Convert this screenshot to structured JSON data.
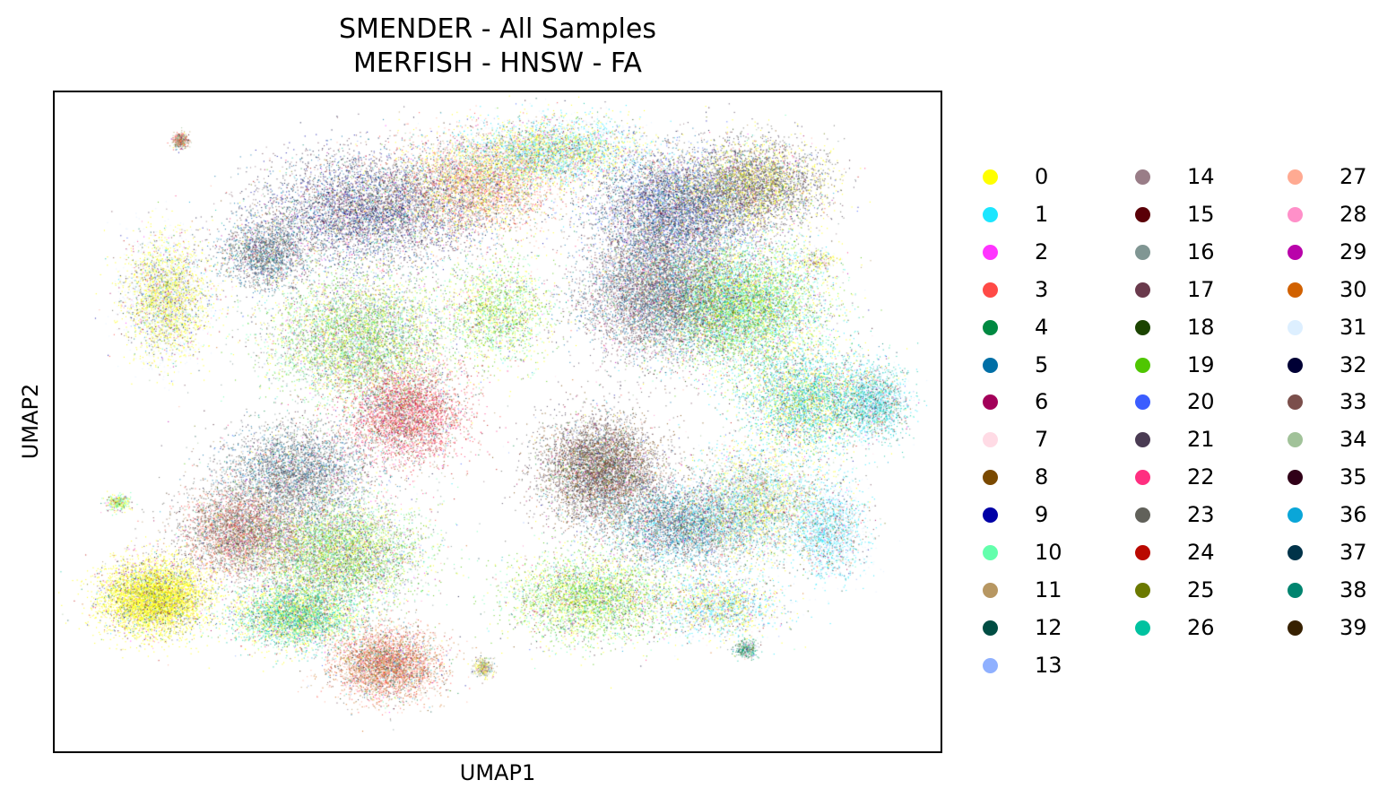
{
  "chart_data": {
    "type": "scatter",
    "title": "SMENDER - All Samples\nMERFISH - HNSW - FA",
    "title_lines": [
      "SMENDER - All Samples",
      "MERFISH - HNSW - FA"
    ],
    "xlabel": "UMAP1",
    "ylabel": "UMAP2",
    "axis_ticks": false,
    "grid": false,
    "legend_position": "right",
    "legend_columns": 3,
    "xlim": [
      -12,
      12
    ],
    "ylim": [
      -9,
      9
    ],
    "series": [
      {
        "name": "0",
        "color": "#ffff00"
      },
      {
        "name": "1",
        "color": "#1ce6ff"
      },
      {
        "name": "2",
        "color": "#ff34ff"
      },
      {
        "name": "3",
        "color": "#ff4a46"
      },
      {
        "name": "4",
        "color": "#008941"
      },
      {
        "name": "5",
        "color": "#006fa6"
      },
      {
        "name": "6",
        "color": "#a30059"
      },
      {
        "name": "7",
        "color": "#ffdbe5"
      },
      {
        "name": "8",
        "color": "#7a4900"
      },
      {
        "name": "9",
        "color": "#0000a6"
      },
      {
        "name": "10",
        "color": "#63ffac"
      },
      {
        "name": "11",
        "color": "#b79762"
      },
      {
        "name": "12",
        "color": "#004d43"
      },
      {
        "name": "13",
        "color": "#8fb0ff"
      },
      {
        "name": "14",
        "color": "#997d87"
      },
      {
        "name": "15",
        "color": "#5a0007"
      },
      {
        "name": "16",
        "color": "#809693"
      },
      {
        "name": "17",
        "color": "#6a3a4c"
      },
      {
        "name": "18",
        "color": "#1b4400"
      },
      {
        "name": "19",
        "color": "#4fc601"
      },
      {
        "name": "20",
        "color": "#3b5dff"
      },
      {
        "name": "21",
        "color": "#4a3b53"
      },
      {
        "name": "22",
        "color": "#ff2f80"
      },
      {
        "name": "23",
        "color": "#61615a"
      },
      {
        "name": "24",
        "color": "#ba0900"
      },
      {
        "name": "25",
        "color": "#6b7900"
      },
      {
        "name": "26",
        "color": "#00c2a0"
      },
      {
        "name": "27",
        "color": "#ffaa92"
      },
      {
        "name": "28",
        "color": "#ff90c9"
      },
      {
        "name": "29",
        "color": "#b903aa"
      },
      {
        "name": "30",
        "color": "#d16100"
      },
      {
        "name": "31",
        "color": "#ddefff"
      },
      {
        "name": "32",
        "color": "#000035"
      },
      {
        "name": "33",
        "color": "#7b4f4b"
      },
      {
        "name": "34",
        "color": "#a1c299"
      },
      {
        "name": "35",
        "color": "#300018"
      },
      {
        "name": "36",
        "color": "#0aa6d8"
      },
      {
        "name": "37",
        "color": "#013349"
      },
      {
        "name": "38",
        "color": "#00846f"
      },
      {
        "name": "39",
        "color": "#372101"
      }
    ],
    "clusters": [
      {
        "center": [
          -3.5,
          5.8
        ],
        "spread": [
          2.6,
          1.4
        ],
        "weight": 3,
        "dominant": [
          "5",
          "21",
          "14",
          "9",
          "17",
          "32"
        ]
      },
      {
        "center": [
          -0.5,
          6.5
        ],
        "spread": [
          2.0,
          1.2
        ],
        "weight": 2,
        "dominant": [
          "3",
          "11",
          "0",
          "27"
        ]
      },
      {
        "center": [
          1.5,
          7.4
        ],
        "spread": [
          2.2,
          0.8
        ],
        "weight": 2,
        "dominant": [
          "0",
          "31",
          "1"
        ]
      },
      {
        "center": [
          4.8,
          5.8
        ],
        "spread": [
          2.0,
          1.4
        ],
        "weight": 3,
        "dominant": [
          "5",
          "21",
          "20",
          "14",
          "32"
        ]
      },
      {
        "center": [
          7.0,
          6.5
        ],
        "spread": [
          1.7,
          1.1
        ],
        "weight": 2,
        "dominant": [
          "0",
          "23",
          "21"
        ]
      },
      {
        "center": [
          6.5,
          3.2
        ],
        "spread": [
          2.0,
          1.5
        ],
        "weight": 4,
        "dominant": [
          "0",
          "19",
          "10",
          "1"
        ]
      },
      {
        "center": [
          4.2,
          3.5
        ],
        "spread": [
          1.8,
          1.6
        ],
        "weight": 3,
        "dominant": [
          "21",
          "14",
          "5",
          "17"
        ]
      },
      {
        "center": [
          8.4,
          0.6
        ],
        "spread": [
          1.6,
          1.3
        ],
        "weight": 2,
        "dominant": [
          "0",
          "1",
          "26"
        ]
      },
      {
        "center": [
          10.2,
          0.5
        ],
        "spread": [
          0.8,
          0.9
        ],
        "weight": 1,
        "dominant": [
          "26",
          "1",
          "31"
        ]
      },
      {
        "center": [
          -9.0,
          3.4
        ],
        "spread": [
          1.0,
          1.5
        ],
        "weight": 2,
        "dominant": [
          "0",
          "31"
        ]
      },
      {
        "center": [
          -6.3,
          4.6
        ],
        "spread": [
          1.1,
          0.9
        ],
        "weight": 1,
        "dominant": [
          "23",
          "21",
          "5"
        ]
      },
      {
        "center": [
          -3.8,
          2.3
        ],
        "spread": [
          2.2,
          1.6
        ],
        "weight": 3,
        "dominant": [
          "19",
          "0",
          "10",
          "16"
        ]
      },
      {
        "center": [
          -2.5,
          0.2
        ],
        "spread": [
          1.5,
          1.2
        ],
        "weight": 2,
        "dominant": [
          "3",
          "11",
          "22",
          "24"
        ]
      },
      {
        "center": [
          -5.5,
          -1.4
        ],
        "spread": [
          1.8,
          1.2
        ],
        "weight": 2,
        "dominant": [
          "5",
          "16",
          "21",
          "23"
        ]
      },
      {
        "center": [
          -7.0,
          -3.0
        ],
        "spread": [
          1.5,
          1.1
        ],
        "weight": 2,
        "dominant": [
          "33",
          "11",
          "3",
          "23"
        ]
      },
      {
        "center": [
          -4.3,
          -3.6
        ],
        "spread": [
          2.0,
          1.3
        ],
        "weight": 3,
        "dominant": [
          "19",
          "0",
          "16",
          "10"
        ]
      },
      {
        "center": [
          -9.3,
          -4.8
        ],
        "spread": [
          1.3,
          0.9
        ],
        "weight": 3,
        "dominant": [
          "0"
        ]
      },
      {
        "center": [
          -5.5,
          -5.3
        ],
        "spread": [
          1.5,
          0.8
        ],
        "weight": 2,
        "dominant": [
          "0",
          "10",
          "26"
        ]
      },
      {
        "center": [
          -3.0,
          -6.6
        ],
        "spread": [
          1.3,
          0.9
        ],
        "weight": 2,
        "dominant": [
          "11",
          "3",
          "27",
          "30"
        ]
      },
      {
        "center": [
          2.8,
          -1.3
        ],
        "spread": [
          1.5,
          1.3
        ],
        "weight": 3,
        "dominant": [
          "8",
          "23",
          "21",
          "33"
        ]
      },
      {
        "center": [
          5.0,
          -2.8
        ],
        "spread": [
          1.8,
          1.0
        ],
        "weight": 2,
        "dominant": [
          "16",
          "5",
          "21",
          "1"
        ]
      },
      {
        "center": [
          2.5,
          -4.8
        ],
        "spread": [
          2.0,
          1.1
        ],
        "weight": 2,
        "dominant": [
          "0",
          "10",
          "19"
        ]
      },
      {
        "center": [
          7.0,
          -2.2
        ],
        "spread": [
          1.6,
          1.4
        ],
        "weight": 2,
        "dominant": [
          "31",
          "1",
          "0",
          "34"
        ]
      },
      {
        "center": [
          6.0,
          -5.0
        ],
        "spread": [
          1.5,
          0.8
        ],
        "weight": 1,
        "dominant": [
          "0",
          "1",
          "31"
        ]
      },
      {
        "center": [
          9.0,
          -3.0
        ],
        "spread": [
          0.9,
          1.2
        ],
        "weight": 1,
        "dominant": [
          "31",
          "1"
        ]
      },
      {
        "center": [
          0.0,
          3.0
        ],
        "spread": [
          1.3,
          1.3
        ],
        "weight": 1,
        "dominant": [
          "0",
          "10",
          "19"
        ]
      },
      {
        "center": [
          -8.6,
          7.7
        ],
        "spread": [
          0.2,
          0.2
        ],
        "weight": 0.2,
        "dominant": [
          "34",
          "3",
          "11"
        ]
      },
      {
        "center": [
          -0.4,
          -6.7
        ],
        "spread": [
          0.25,
          0.25
        ],
        "weight": 0.15,
        "dominant": [
          "11",
          "34",
          "0"
        ]
      },
      {
        "center": [
          6.7,
          -6.2
        ],
        "spread": [
          0.3,
          0.25
        ],
        "weight": 0.15,
        "dominant": [
          "4",
          "16",
          "26"
        ]
      },
      {
        "center": [
          -10.3,
          -2.2
        ],
        "spread": [
          0.3,
          0.2
        ],
        "weight": 0.15,
        "dominant": [
          "0",
          "10"
        ]
      },
      {
        "center": [
          8.6,
          4.4
        ],
        "spread": [
          0.5,
          0.3
        ],
        "weight": 0.15,
        "dominant": [
          "0",
          "31"
        ]
      }
    ]
  },
  "legend": {
    "entries": [
      "0",
      "1",
      "2",
      "3",
      "4",
      "5",
      "6",
      "7",
      "8",
      "9",
      "10",
      "11",
      "12",
      "13",
      "14",
      "15",
      "16",
      "17",
      "18",
      "19",
      "20",
      "21",
      "22",
      "23",
      "24",
      "25",
      "26",
      "27",
      "28",
      "29",
      "30",
      "31",
      "32",
      "33",
      "34",
      "35",
      "36",
      "37",
      "38",
      "39"
    ]
  }
}
